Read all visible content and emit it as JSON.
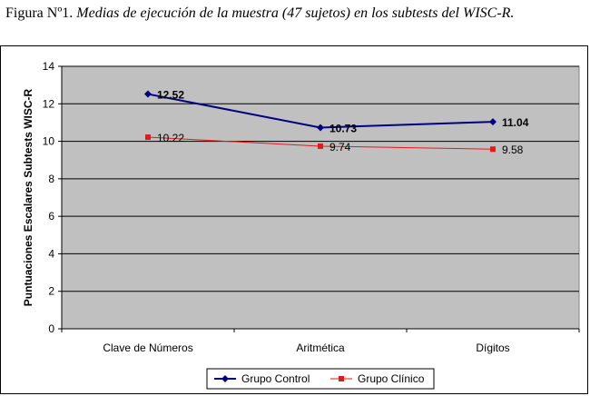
{
  "caption": {
    "label": "Figura Nº1.",
    "text": "Medias de ejecución de la muestra (47 sujetos) en los subtests del WISC-R."
  },
  "chart_data": {
    "type": "line",
    "categories": [
      "Clave de Números",
      "Aritmética",
      "Dígitos"
    ],
    "series": [
      {
        "name": "Grupo Control",
        "values": [
          12.52,
          10.73,
          11.04
        ],
        "labels": [
          "12.52",
          "10.73",
          "11.04"
        ],
        "color": "#000080",
        "marker": "diamond"
      },
      {
        "name": "Grupo Clínico",
        "values": [
          10.22,
          9.74,
          9.58
        ],
        "labels": [
          "10.22",
          "9.74",
          "9.58"
        ],
        "color": "#e31a1c",
        "marker": "square"
      }
    ],
    "ylabel": "Puntuaciones Escalares Subtests WISC-R",
    "xlabel": "",
    "ylim": [
      0,
      14
    ],
    "yticks": [
      0,
      2,
      4,
      6,
      8,
      10,
      12,
      14
    ],
    "grid": true,
    "plot_background": "#c0c0c0",
    "legend": "bottom"
  }
}
